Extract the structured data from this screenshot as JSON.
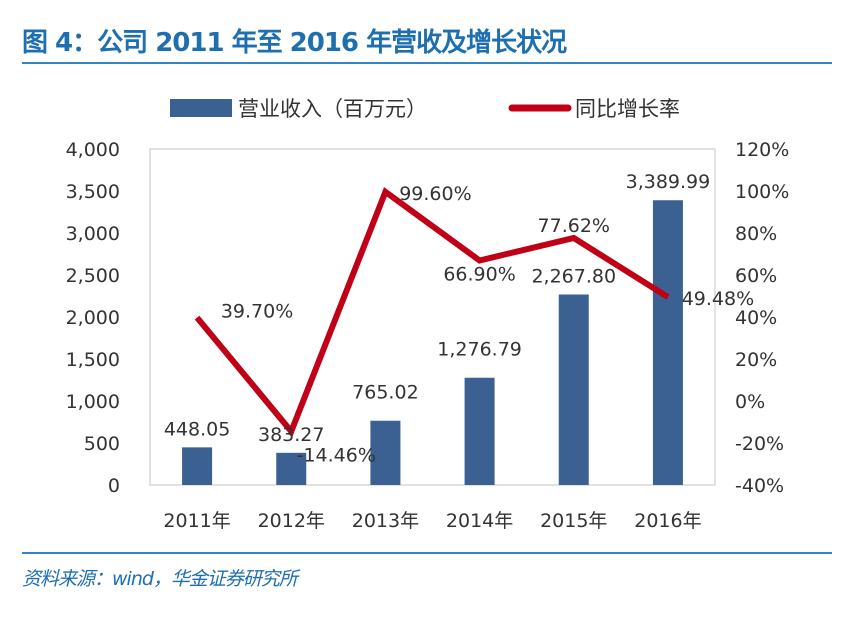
{
  "title": "图 4：公司 2011 年至 2016 年营收及增长状况",
  "source": "资料来源：wind，华金证券研究所",
  "colors": {
    "bar": "#3a6192",
    "line": "#c00016",
    "title": "#1d6fb0"
  },
  "chart_data": {
    "type": "bar+line",
    "categories": [
      "2011年",
      "2012年",
      "2013年",
      "2014年",
      "2015年",
      "2016年"
    ],
    "series": [
      {
        "name": "营业收入（百万元）",
        "type": "bar",
        "axis": "left",
        "values": [
          448.05,
          383.27,
          765.02,
          1276.79,
          2267.8,
          3389.99
        ],
        "labels": [
          "448.05",
          "383.27",
          "765.02",
          "1,276.79",
          "2,267.80",
          "3,389.99"
        ]
      },
      {
        "name": "同比增长率",
        "type": "line",
        "axis": "right",
        "values": [
          39.7,
          -14.46,
          99.6,
          66.9,
          77.62,
          49.48
        ],
        "labels": [
          "39.70%",
          "-14.46%",
          "99.60%",
          "66.90%",
          "77.62%",
          "49.48%"
        ]
      }
    ],
    "left_axis": {
      "ylim": [
        0,
        4000
      ],
      "ticks": [
        "0",
        "500",
        "1,000",
        "1,500",
        "2,000",
        "2,500",
        "3,000",
        "3,500",
        "4,000"
      ]
    },
    "right_axis": {
      "ylim": [
        -40,
        120
      ],
      "ticks": [
        "-40%",
        "-20%",
        "0%",
        "20%",
        "40%",
        "60%",
        "80%",
        "100%",
        "120%"
      ]
    },
    "legend": "top",
    "grid": false
  }
}
